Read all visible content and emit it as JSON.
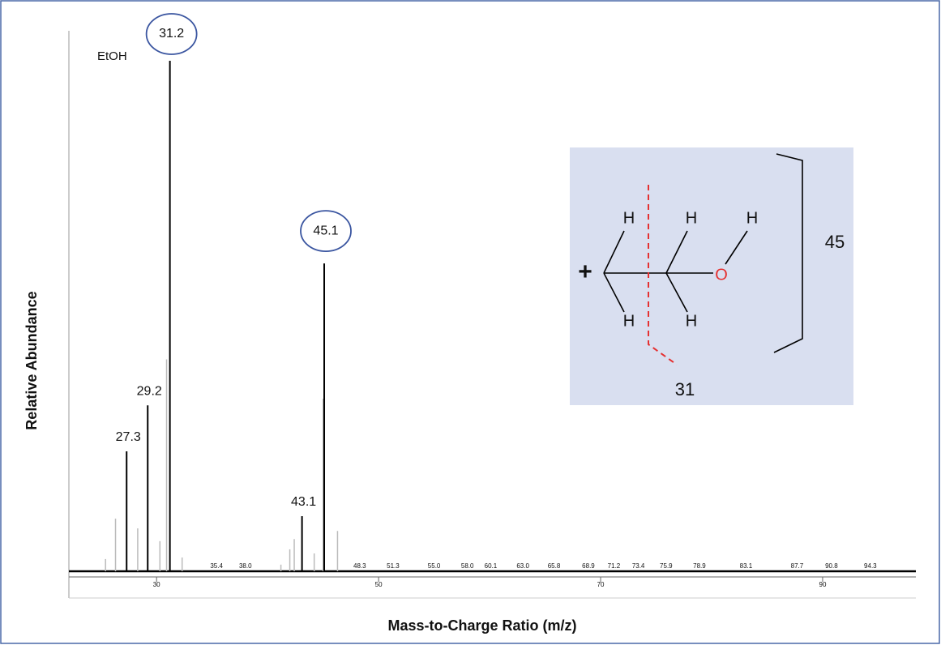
{
  "chart_data": {
    "type": "bar",
    "annotation": "EtOH",
    "x_label": "Mass-to-Charge Ratio (m/z)",
    "y_label": "Relative Abundance",
    "xlim": [
      22.1,
      98.4
    ],
    "ylim": [
      0,
      100
    ],
    "xticks": [
      30,
      50,
      70,
      90
    ],
    "highlighted": [
      2,
      4
    ],
    "series": [
      {
        "color": "#000000",
        "x": [
          27.3,
          29.2,
          31.2,
          43.1,
          45.1
        ],
        "values": [
          23.5,
          32.5,
          100,
          10.8,
          60.3
        ]
      },
      {
        "color": "#bbbbbb",
        "x": [
          25.4,
          26.3,
          28.3,
          30.3,
          30.9,
          32.3,
          41.2,
          42.0,
          42.4,
          44.2,
          45.0,
          46.3
        ],
        "values": [
          2.4,
          10.3,
          8.4,
          5.9,
          41.5,
          2.7,
          1.3,
          4.3,
          6.3,
          3.5,
          33.8,
          7.9
        ]
      }
    ],
    "minor_peak_labels": [
      35.4,
      {
        "value": 38,
        "label": "38.0"
      },
      48.3,
      51.3,
      {
        "value": 55,
        "label": "55.0"
      },
      {
        "value": 58,
        "label": "58.0"
      },
      60.1,
      {
        "value": 63,
        "label": "63.0"
      },
      65.8,
      68.9,
      71.2,
      73.4,
      75.9,
      78.9,
      83.1,
      87.7,
      90.8,
      94.3
    ]
  },
  "inset": {
    "plus": "+",
    "atoms": [
      "H",
      "H",
      "H",
      "O",
      "H",
      "H"
    ],
    "fragment_labels": [
      "45",
      "31"
    ]
  }
}
